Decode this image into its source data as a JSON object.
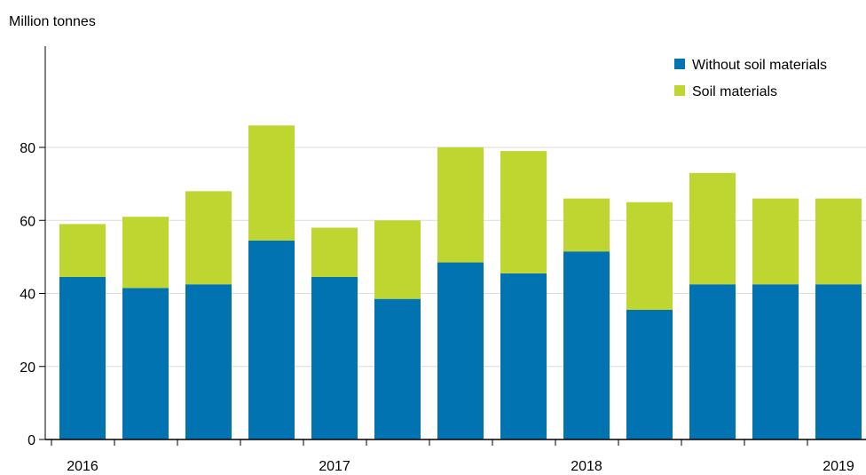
{
  "chart_data": {
    "type": "bar",
    "stacked": true,
    "title": "",
    "ylabel": "Million tonnes",
    "xlabel": "",
    "ylim": [
      0,
      100
    ],
    "yticks": [
      0,
      20,
      40,
      60,
      80
    ],
    "grid": true,
    "legend_position": "top-right",
    "x_group_labels": [
      {
        "label": "2016",
        "start_index": 0
      },
      {
        "label": "2017",
        "start_index": 4
      },
      {
        "label": "2018",
        "start_index": 8
      },
      {
        "label": "2019",
        "start_index": 12
      }
    ],
    "series": [
      {
        "name": "Without soil materials",
        "color": "#0073b0",
        "values": [
          44.5,
          41.5,
          42.5,
          54.5,
          44.5,
          38.5,
          48.5,
          45.5,
          51.5,
          35.5,
          42.5,
          42.5,
          42.5
        ]
      },
      {
        "name": "Soil materials",
        "color": "#bfd630",
        "values": [
          14.5,
          19.5,
          25.5,
          31.5,
          13.5,
          21.5,
          31.5,
          33.5,
          14.5,
          29.5,
          30.5,
          23.5,
          23.5
        ]
      }
    ]
  }
}
